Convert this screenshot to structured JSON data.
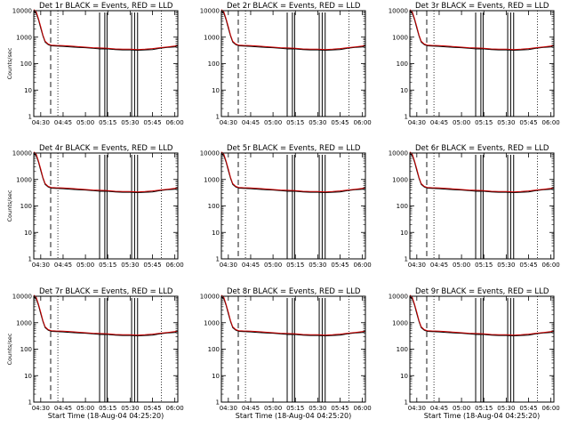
{
  "chart_data": [
    {
      "type": "line",
      "title": "Det 1r BLACK = Events, RED = LLD",
      "ylabel": "Counts/sec",
      "xlabel": "",
      "show_xlabel": false
    },
    {
      "type": "line",
      "title": "Det 2r BLACK = Events, RED = LLD",
      "ylabel": "",
      "xlabel": "",
      "show_xlabel": false
    },
    {
      "type": "line",
      "title": "Det 3r BLACK = Events, RED = LLD",
      "ylabel": "",
      "xlabel": "",
      "show_xlabel": false
    },
    {
      "type": "line",
      "title": "Det 4r BLACK = Events, RED = LLD",
      "ylabel": "Counts/sec",
      "xlabel": "",
      "show_xlabel": false
    },
    {
      "type": "line",
      "title": "Det 5r BLACK = Events, RED = LLD",
      "ylabel": "",
      "xlabel": "",
      "show_xlabel": false
    },
    {
      "type": "line",
      "title": "Det 6r BLACK = Events, RED = LLD",
      "ylabel": "",
      "xlabel": "",
      "show_xlabel": false
    },
    {
      "type": "line",
      "title": "Det 7r BLACK = Events, RED = LLD",
      "ylabel": "Counts/sec",
      "xlabel": "Start Time (18-Aug-04 04:25:20)",
      "show_xlabel": true
    },
    {
      "type": "line",
      "title": "Det 8r BLACK = Events, RED = LLD",
      "ylabel": "",
      "xlabel": "Start Time (18-Aug-04 04:25:20)",
      "show_xlabel": true
    },
    {
      "type": "line",
      "title": "Det 9r BLACK = Events, RED = LLD",
      "ylabel": "",
      "xlabel": "Start Time (18-Aug-04 04:25:20)",
      "show_xlabel": true
    }
  ],
  "shared": {
    "yscale": "log",
    "ylim": [
      1,
      10000
    ],
    "ytick_labels": [
      "1",
      "10",
      "100",
      "1000",
      "10000"
    ],
    "xlim": [
      "04:25:20",
      "06:02:00"
    ],
    "xtick_labels": [
      "04:30",
      "04:45",
      "05:00",
      "05:15",
      "05:30",
      "05:45",
      "06:00"
    ],
    "series": [
      {
        "name": "Events",
        "color": "#000000",
        "x": [
          "04:25:20",
          "04:27:00",
          "04:28:30",
          "04:30:00",
          "04:31:30",
          "04:33:00",
          "04:35:00",
          "04:37:00",
          "04:40:00",
          "04:45:00",
          "04:50:00",
          "04:55:00",
          "05:00:00",
          "05:05:00",
          "05:10:00",
          "05:15:00",
          "05:20:00",
          "05:25:00",
          "05:30:00",
          "05:35:00",
          "05:40:00",
          "05:45:00",
          "05:50:00",
          "05:55:00",
          "06:00:00",
          "06:02:00"
        ],
        "y": [
          9500,
          8000,
          4500,
          2200,
          1100,
          650,
          520,
          470,
          460,
          450,
          430,
          410,
          400,
          380,
          360,
          360,
          340,
          330,
          330,
          320,
          330,
          340,
          380,
          410,
          430,
          470
        ]
      },
      {
        "name": "LLD",
        "color": "#cc0000",
        "x": [
          "04:25:20",
          "04:27:00",
          "04:28:30",
          "04:30:00",
          "04:31:30",
          "04:33:00",
          "04:35:00",
          "04:37:00",
          "04:40:00",
          "04:45:00",
          "04:50:00",
          "04:55:00",
          "05:00:00",
          "05:05:00",
          "05:10:00",
          "05:15:00",
          "05:20:00",
          "05:25:00",
          "05:30:00",
          "05:35:00",
          "05:40:00",
          "05:45:00",
          "05:50:00",
          "05:55:00",
          "06:00:00",
          "06:02:00"
        ],
        "y": [
          11000,
          9000,
          5000,
          2500,
          1200,
          700,
          550,
          500,
          490,
          480,
          460,
          440,
          420,
          400,
          390,
          380,
          360,
          350,
          350,
          340,
          350,
          370,
          400,
          430,
          460,
          500
        ]
      }
    ],
    "dashed_line_x": [
      "04:36:40"
    ],
    "dotted_lines_x": [
      "04:41:30",
      "05:51:00"
    ],
    "spike_x": [
      "05:09:30",
      "05:13:00",
      "05:14:30",
      "05:31:00",
      "05:33:00",
      "05:35:00"
    ]
  }
}
